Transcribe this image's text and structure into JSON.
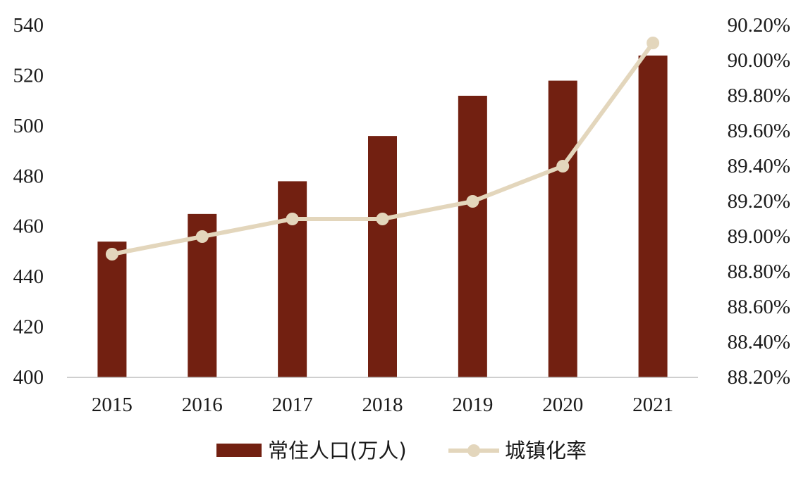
{
  "chart_data": {
    "type": "bar",
    "categories": [
      "2015",
      "2016",
      "2017",
      "2018",
      "2019",
      "2020",
      "2021"
    ],
    "series": [
      {
        "name": "常住人口(万人)",
        "type": "bar",
        "axis": "left",
        "color": "#722011",
        "values": [
          454,
          465,
          478,
          496,
          512,
          518,
          528
        ]
      },
      {
        "name": "城镇化率",
        "type": "line",
        "axis": "right",
        "color": "#e3d6bc",
        "values": [
          88.9,
          89.0,
          89.1,
          89.1,
          89.2,
          89.4,
          90.1
        ]
      }
    ],
    "y_left": {
      "min": 400,
      "max": 540,
      "ticks": [
        "400",
        "420",
        "440",
        "460",
        "480",
        "500",
        "520",
        "540"
      ]
    },
    "y_right": {
      "min": 88.2,
      "max": 90.2,
      "ticks": [
        "88.20%",
        "88.40%",
        "88.60%",
        "88.80%",
        "89.00%",
        "89.20%",
        "89.40%",
        "89.60%",
        "89.80%",
        "90.00%",
        "90.20%"
      ]
    },
    "title": "",
    "xlabel": "",
    "ylabel": "",
    "grid": false,
    "legend_position": "bottom"
  }
}
